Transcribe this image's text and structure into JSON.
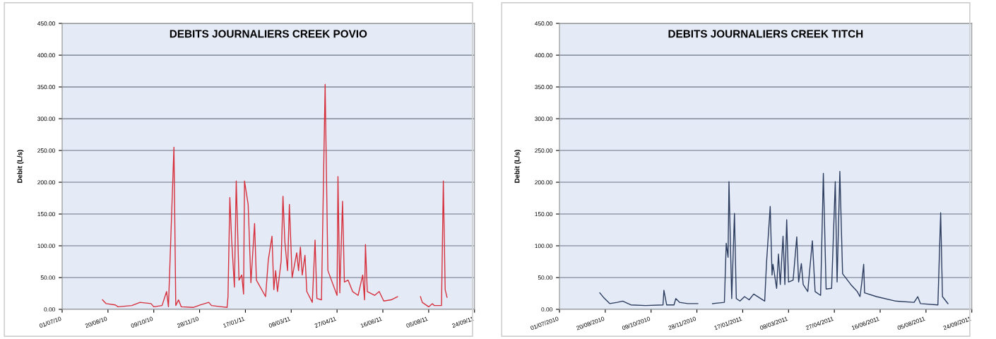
{
  "chart_data": [
    {
      "type": "line",
      "title": "DEBITS JOURNALIERS CREEK POVIO",
      "ylabel": "Debit (L/s)",
      "color": "#d6303c",
      "grid": "y",
      "marker": "none",
      "line_style": "solid",
      "x": [
        "2010-08-14",
        "2010-08-18",
        "2010-08-28",
        "2010-08-31",
        "2010-09-15",
        "2010-09-24",
        "2010-10-06",
        "2010-10-09",
        "2010-10-18",
        "2010-10-23",
        "2010-10-25",
        "2010-10-31",
        "2010-11-02",
        "2010-11-05",
        "2010-11-08",
        "2010-11-21",
        "2010-11-29",
        "2010-12-08",
        "2010-12-11",
        "2010-12-22",
        "2010-12-28",
        "2010-12-29",
        "2010-12-31",
        "2011-01-02",
        "2011-01-05",
        "2011-01-07",
        "2011-01-10",
        "2011-01-13",
        "2011-01-15",
        "2011-01-16",
        "2011-01-20",
        "2011-01-23",
        "2011-01-27",
        "2011-01-29",
        "2011-02-08",
        "2011-02-11",
        "2011-02-15",
        "2011-02-17",
        "2011-02-19",
        "2011-02-21",
        "2011-02-25",
        "2011-02-27",
        "2011-03-01",
        "2011-03-04",
        "2011-03-06",
        "2011-03-09",
        "2011-03-14",
        "2011-03-16",
        "2011-03-18",
        "2011-03-20",
        "2011-03-23",
        "2011-03-25",
        "2011-03-31",
        "2011-04-03",
        "2011-04-05",
        "2011-04-10",
        "2011-04-14",
        "2011-04-17",
        "2011-04-27",
        "2011-04-28",
        "2011-04-30",
        "2011-05-03",
        "2011-05-05",
        "2011-05-09",
        "2011-05-14",
        "2011-05-20",
        "2011-05-25",
        "2011-05-27",
        "2011-05-28",
        "2011-05-30",
        "2011-06-07",
        "2011-06-12",
        "2011-06-17",
        "2011-06-25",
        "2011-07-02",
        "2011-07-14",
        "2011-07-27",
        "2011-07-29",
        "2011-08-05",
        "2011-08-09",
        "2011-08-11",
        "2011-08-19",
        "2011-08-21",
        "2011-08-23",
        "2011-08-25"
      ],
      "values": [
        15,
        9,
        7,
        4,
        6,
        11,
        9,
        4,
        6,
        28,
        4,
        255,
        6,
        15,
        4,
        3,
        7,
        11,
        6,
        4,
        3,
        20,
        176,
        109,
        35,
        202,
        46,
        54,
        24,
        202,
        165,
        42,
        135,
        46,
        20,
        78,
        115,
        31,
        61,
        28,
        76,
        178,
        107,
        61,
        165,
        50,
        89,
        61,
        98,
        54,
        85,
        28,
        11,
        109,
        17,
        15,
        354,
        61,
        22,
        209,
        26,
        170,
        43,
        46,
        28,
        22,
        54,
        15,
        102,
        28,
        22,
        28,
        13,
        15,
        20,
        null,
        20,
        11,
        4,
        9,
        6,
        6,
        202,
        31,
        19
      ],
      "xlim": [
        "2010-07-01",
        "2011-09-24"
      ],
      "xticks": [
        {
          "value": "2010-07-01",
          "label": "01/07/10"
        },
        {
          "value": "2010-08-20",
          "label": "20/08/10"
        },
        {
          "value": "2010-10-09",
          "label": "09/10/10"
        },
        {
          "value": "2010-11-28",
          "label": "28/11/10"
        },
        {
          "value": "2011-01-17",
          "label": "17/01/11"
        },
        {
          "value": "2011-03-08",
          "label": "08/03/11"
        },
        {
          "value": "2011-04-27",
          "label": "27/04/11"
        },
        {
          "value": "2011-06-16",
          "label": "16/06/11"
        },
        {
          "value": "2011-08-05",
          "label": "05/08/11"
        },
        {
          "value": "2011-09-24",
          "label": "24/09/11"
        }
      ],
      "ylim": [
        0,
        450
      ],
      "yticks": [
        {
          "value": 0,
          "label": "0.00"
        },
        {
          "value": 50,
          "label": "50.00"
        },
        {
          "value": 100,
          "label": "100.00"
        },
        {
          "value": 150,
          "label": "150.00"
        },
        {
          "value": 200,
          "label": "200.00"
        },
        {
          "value": 250,
          "label": "250.00"
        },
        {
          "value": 300,
          "label": "300.00"
        },
        {
          "value": 350,
          "label": "350.00"
        },
        {
          "value": 400,
          "label": "400.00"
        },
        {
          "value": 450,
          "label": "450.00"
        }
      ]
    },
    {
      "type": "line",
      "title": "DEBITS JOURNALIERS CREEK TITCH",
      "ylabel": "Debit (L/s)",
      "color": "#2c3c5e",
      "grid": "y",
      "marker": "none",
      "line_style": "solid",
      "x": [
        "2010-08-14",
        "2010-08-18",
        "2010-08-25",
        "2010-09-02",
        "2010-09-08",
        "2010-09-17",
        "2010-10-03",
        "2010-10-22",
        "2010-10-23",
        "2010-10-26",
        "2010-11-03",
        "2010-11-05",
        "2010-11-09",
        "2010-11-18",
        "2010-11-29",
        "2010-12-08",
        "2010-12-15",
        "2010-12-28",
        "2010-12-30",
        "2011-01-01",
        "2011-01-02",
        "2011-01-05",
        "2011-01-08",
        "2011-01-10",
        "2011-01-14",
        "2011-01-19",
        "2011-01-24",
        "2011-01-29",
        "2011-02-10",
        "2011-02-12",
        "2011-02-16",
        "2011-02-18",
        "2011-02-19",
        "2011-02-23",
        "2011-02-25",
        "2011-02-27",
        "2011-03-02",
        "2011-03-04",
        "2011-03-06",
        "2011-03-08",
        "2011-03-13",
        "2011-03-17",
        "2011-03-19",
        "2011-03-22",
        "2011-03-24",
        "2011-03-29",
        "2011-04-03",
        "2011-04-06",
        "2011-04-12",
        "2011-04-15",
        "2011-04-18",
        "2011-04-24",
        "2011-04-28",
        "2011-04-30",
        "2011-05-03",
        "2011-05-06",
        "2011-05-15",
        "2011-05-22",
        "2011-05-25",
        "2011-05-27",
        "2011-05-29",
        "2011-05-30",
        "2011-06-12",
        "2011-07-03",
        "2011-07-23",
        "2011-07-27",
        "2011-07-30",
        "2011-08-18",
        "2011-08-21",
        "2011-08-23",
        "2011-08-29"
      ],
      "values": [
        26,
        19,
        9,
        11,
        13,
        7,
        6,
        7,
        30,
        7,
        7,
        17,
        11,
        9,
        9,
        null,
        9,
        11,
        104,
        82,
        201,
        17,
        151,
        17,
        13,
        20,
        15,
        24,
        13,
        74,
        162,
        54,
        71,
        33,
        87,
        39,
        115,
        39,
        141,
        43,
        46,
        114,
        43,
        72,
        39,
        28,
        108,
        28,
        22,
        214,
        32,
        33,
        201,
        43,
        217,
        56,
        39,
        28,
        20,
        43,
        71,
        26,
        20,
        13,
        11,
        20,
        9,
        7,
        152,
        20,
        9
      ],
      "xlim": [
        "2010-07-01",
        "2011-09-24"
      ],
      "xticks": [
        {
          "value": "2010-07-01",
          "label": "01/07/2010"
        },
        {
          "value": "2010-08-20",
          "label": "20/08/2010"
        },
        {
          "value": "2010-10-09",
          "label": "09/10/2010"
        },
        {
          "value": "2010-11-28",
          "label": "28/11/2010"
        },
        {
          "value": "2011-01-17",
          "label": "17/01/2011"
        },
        {
          "value": "2011-03-08",
          "label": "08/03/2011"
        },
        {
          "value": "2011-04-27",
          "label": "27/04/2011"
        },
        {
          "value": "2011-06-16",
          "label": "16/06/2011"
        },
        {
          "value": "2011-08-05",
          "label": "05/08/2011"
        },
        {
          "value": "2011-09-24",
          "label": "24/09/2011"
        }
      ],
      "ylim": [
        0,
        450
      ],
      "yticks": [
        {
          "value": 0,
          "label": "0.00"
        },
        {
          "value": 50,
          "label": "50.00"
        },
        {
          "value": 100,
          "label": "100.00"
        },
        {
          "value": 150,
          "label": "150.00"
        },
        {
          "value": 200,
          "label": "200.00"
        },
        {
          "value": 250,
          "label": "250.00"
        },
        {
          "value": 300,
          "label": "300.00"
        },
        {
          "value": 350,
          "label": "350.00"
        },
        {
          "value": 400,
          "label": "400.00"
        },
        {
          "value": 450,
          "label": "450.00"
        }
      ]
    }
  ]
}
